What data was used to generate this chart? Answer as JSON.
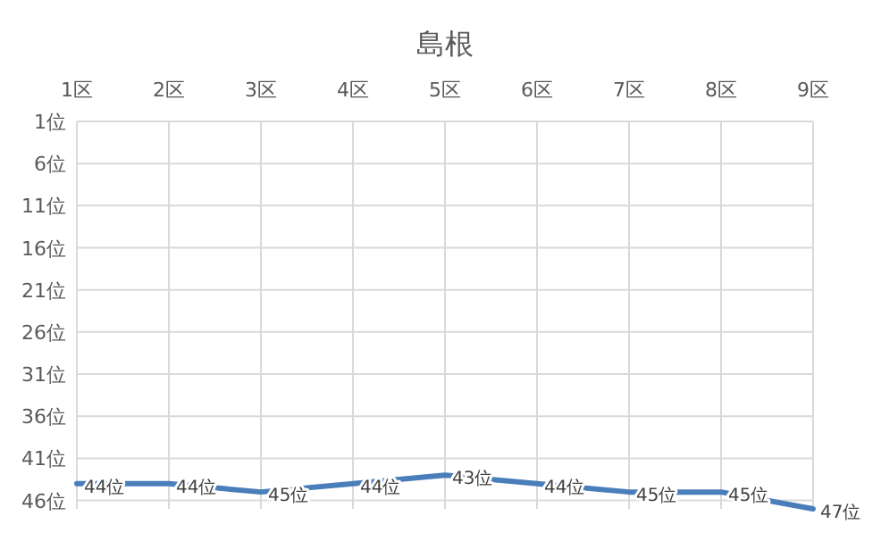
{
  "chart_data": {
    "type": "line",
    "title": "島根",
    "categories": [
      "1区",
      "2区",
      "3区",
      "4区",
      "5区",
      "6区",
      "7区",
      "8区",
      "9区"
    ],
    "series": [
      {
        "color": "#4a7ebb",
        "values": [
          44,
          44,
          45,
          44,
          43,
          44,
          45,
          45,
          47
        ],
        "value_labels": [
          "44位",
          "44位",
          "45位",
          "44位",
          "43位",
          "44位",
          "45位",
          "45位",
          "47位"
        ]
      }
    ],
    "ylim": [
      47,
      1
    ],
    "yticks": [
      {
        "value": 1,
        "label": "1位"
      },
      {
        "value": 6,
        "label": "6位"
      },
      {
        "value": 11,
        "label": "11位"
      },
      {
        "value": 16,
        "label": "16位"
      },
      {
        "value": 21,
        "label": "21位"
      },
      {
        "value": 26,
        "label": "26位"
      },
      {
        "value": 31,
        "label": "31位"
      },
      {
        "value": 36,
        "label": "36位"
      },
      {
        "value": 41,
        "label": "41位"
      },
      {
        "value": 46,
        "label": "46位"
      }
    ],
    "grid": true
  }
}
